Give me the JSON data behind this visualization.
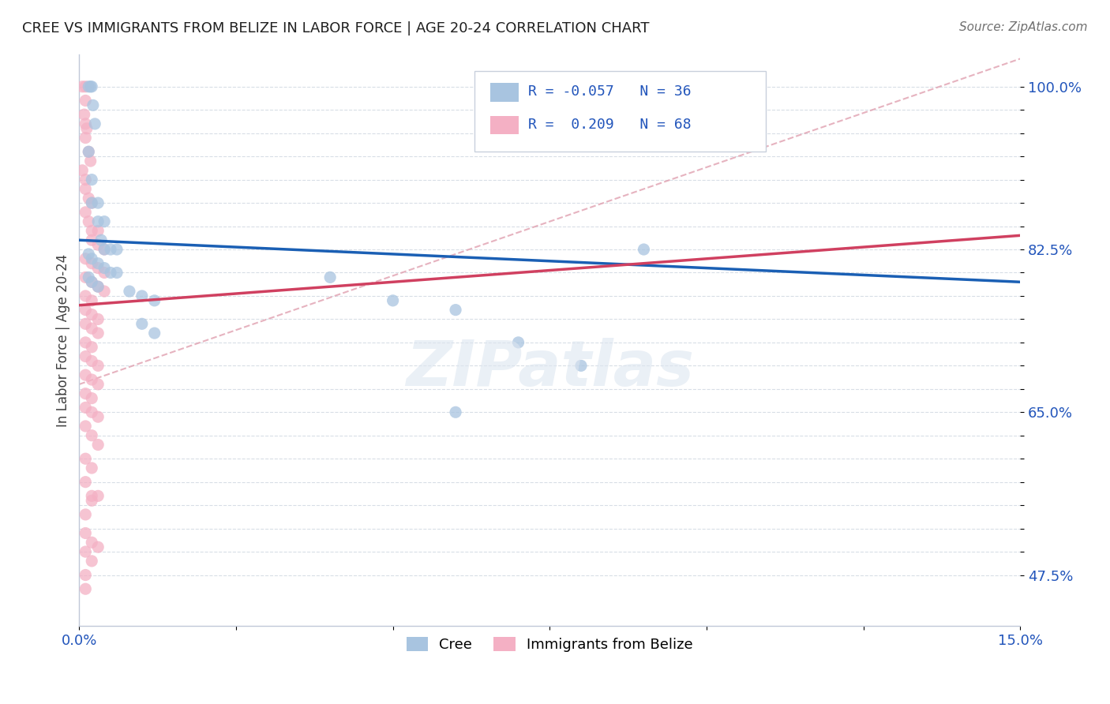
{
  "title": "CREE VS IMMIGRANTS FROM BELIZE IN LABOR FORCE | AGE 20-24 CORRELATION CHART",
  "source": "Source: ZipAtlas.com",
  "ylabel": "In Labor Force | Age 20-24",
  "xlim": [
    0.0,
    0.15
  ],
  "ylim": [
    0.42,
    1.035
  ],
  "yticks": [
    0.475,
    0.5,
    0.525,
    0.55,
    0.575,
    0.6,
    0.625,
    0.65,
    0.675,
    0.7,
    0.725,
    0.75,
    0.775,
    0.8,
    0.825,
    0.85,
    0.875,
    0.9,
    0.925,
    0.95,
    0.975,
    1.0
  ],
  "ytick_labels": [
    "47.5%",
    "",
    "",
    "",
    "",
    "",
    "",
    "65.0%",
    "",
    "",
    "",
    "",
    "",
    "",
    "82.5%",
    "",
    "",
    "",
    "",
    "",
    "",
    "100.0%"
  ],
  "xtick_positions": [
    0.0,
    0.025,
    0.05,
    0.075,
    0.1,
    0.125,
    0.15
  ],
  "xtick_labels": [
    "0.0%",
    "",
    "",
    "",
    "",
    "",
    "15.0%"
  ],
  "watermark": "ZIPatlas",
  "cree_color": "#a8c4e0",
  "belize_color": "#f4b0c4",
  "cree_line_color": "#1a5fb4",
  "belize_line_color": "#d04060",
  "dashed_color": "#e0a0b0",
  "cree_trend_x": [
    0.0,
    0.15
  ],
  "cree_trend_y": [
    0.835,
    0.79
  ],
  "belize_trend_x": [
    0.0,
    0.15
  ],
  "belize_trend_y": [
    0.765,
    0.84
  ],
  "dashed_trend_x": [
    0.0,
    0.15
  ],
  "dashed_trend_y": [
    0.68,
    1.03
  ],
  "cree_scatter": [
    [
      0.0015,
      1.0
    ],
    [
      0.0018,
      1.0
    ],
    [
      0.002,
      1.0
    ],
    [
      0.0022,
      0.98
    ],
    [
      0.0025,
      0.96
    ],
    [
      0.0015,
      0.93
    ],
    [
      0.002,
      0.9
    ],
    [
      0.002,
      0.875
    ],
    [
      0.003,
      0.875
    ],
    [
      0.003,
      0.855
    ],
    [
      0.004,
      0.855
    ],
    [
      0.0035,
      0.835
    ],
    [
      0.004,
      0.825
    ],
    [
      0.005,
      0.825
    ],
    [
      0.006,
      0.825
    ],
    [
      0.0015,
      0.82
    ],
    [
      0.002,
      0.815
    ],
    [
      0.003,
      0.81
    ],
    [
      0.004,
      0.805
    ],
    [
      0.005,
      0.8
    ],
    [
      0.006,
      0.8
    ],
    [
      0.0015,
      0.795
    ],
    [
      0.002,
      0.79
    ],
    [
      0.003,
      0.785
    ],
    [
      0.008,
      0.78
    ],
    [
      0.01,
      0.775
    ],
    [
      0.012,
      0.77
    ],
    [
      0.01,
      0.745
    ],
    [
      0.012,
      0.735
    ],
    [
      0.04,
      0.795
    ],
    [
      0.05,
      0.77
    ],
    [
      0.06,
      0.76
    ],
    [
      0.07,
      0.725
    ],
    [
      0.08,
      0.7
    ],
    [
      0.06,
      0.65
    ],
    [
      0.09,
      0.825
    ]
  ],
  "belize_scatter": [
    [
      0.0005,
      1.0
    ],
    [
      0.001,
      1.0
    ],
    [
      0.001,
      0.985
    ],
    [
      0.0008,
      0.97
    ],
    [
      0.001,
      0.96
    ],
    [
      0.0012,
      0.955
    ],
    [
      0.001,
      0.945
    ],
    [
      0.0015,
      0.93
    ],
    [
      0.0018,
      0.92
    ],
    [
      0.0005,
      0.91
    ],
    [
      0.001,
      0.9
    ],
    [
      0.001,
      0.89
    ],
    [
      0.0015,
      0.88
    ],
    [
      0.002,
      0.875
    ],
    [
      0.001,
      0.865
    ],
    [
      0.0015,
      0.855
    ],
    [
      0.002,
      0.845
    ],
    [
      0.003,
      0.845
    ],
    [
      0.002,
      0.835
    ],
    [
      0.003,
      0.83
    ],
    [
      0.004,
      0.825
    ],
    [
      0.001,
      0.815
    ],
    [
      0.002,
      0.81
    ],
    [
      0.003,
      0.805
    ],
    [
      0.004,
      0.8
    ],
    [
      0.001,
      0.795
    ],
    [
      0.002,
      0.79
    ],
    [
      0.003,
      0.785
    ],
    [
      0.004,
      0.78
    ],
    [
      0.001,
      0.775
    ],
    [
      0.002,
      0.77
    ],
    [
      0.001,
      0.76
    ],
    [
      0.002,
      0.755
    ],
    [
      0.003,
      0.75
    ],
    [
      0.001,
      0.745
    ],
    [
      0.002,
      0.74
    ],
    [
      0.003,
      0.735
    ],
    [
      0.001,
      0.725
    ],
    [
      0.002,
      0.72
    ],
    [
      0.001,
      0.71
    ],
    [
      0.002,
      0.705
    ],
    [
      0.003,
      0.7
    ],
    [
      0.001,
      0.69
    ],
    [
      0.002,
      0.685
    ],
    [
      0.003,
      0.68
    ],
    [
      0.001,
      0.67
    ],
    [
      0.002,
      0.665
    ],
    [
      0.001,
      0.655
    ],
    [
      0.002,
      0.65
    ],
    [
      0.003,
      0.645
    ],
    [
      0.001,
      0.635
    ],
    [
      0.002,
      0.625
    ],
    [
      0.003,
      0.615
    ],
    [
      0.001,
      0.6
    ],
    [
      0.002,
      0.59
    ],
    [
      0.001,
      0.575
    ],
    [
      0.002,
      0.56
    ],
    [
      0.001,
      0.54
    ],
    [
      0.001,
      0.52
    ],
    [
      0.001,
      0.5
    ],
    [
      0.002,
      0.49
    ],
    [
      0.001,
      0.475
    ],
    [
      0.001,
      0.46
    ],
    [
      0.002,
      0.51
    ],
    [
      0.003,
      0.505
    ],
    [
      0.002,
      0.555
    ],
    [
      0.003,
      0.56
    ]
  ]
}
